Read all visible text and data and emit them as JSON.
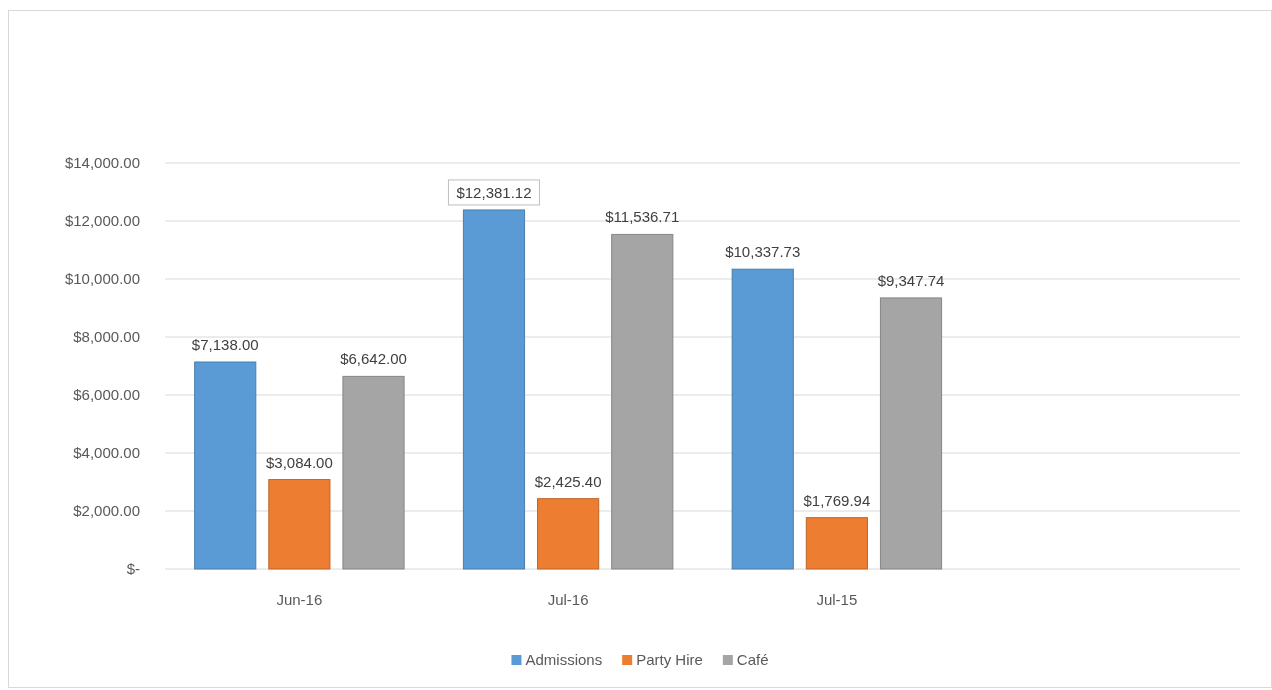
{
  "chart_data": {
    "type": "bar",
    "categories": [
      "Jun-16",
      "Jul-16",
      "Jul-15",
      null
    ],
    "series": [
      {
        "name": "Admissions",
        "color": "#5b9bd5",
        "values": [
          7138.0,
          12381.12,
          10337.73,
          null
        ],
        "value_labels": [
          "$7,138.00",
          "$12,381.12",
          "$10,337.73",
          null
        ]
      },
      {
        "name": "Party Hire",
        "color": "#ed7d31",
        "values": [
          3084.0,
          2425.4,
          1769.94,
          null
        ],
        "value_labels": [
          "$3,084.00",
          "$2,425.40",
          "$1,769.94",
          null
        ]
      },
      {
        "name": "Café",
        "color": "#a5a5a5",
        "values": [
          6642.0,
          11536.71,
          9347.74,
          null
        ],
        "value_labels": [
          "$6,642.00",
          "$11,536.71",
          "$9,347.74",
          null
        ]
      }
    ],
    "ylim": [
      0,
      14000
    ],
    "yticks": [
      {
        "value": 0,
        "label": "$-"
      },
      {
        "value": 2000,
        "label": "$2,000.00"
      },
      {
        "value": 4000,
        "label": "$4,000.00"
      },
      {
        "value": 6000,
        "label": "$6,000.00"
      },
      {
        "value": 8000,
        "label": "$8,000.00"
      },
      {
        "value": 10000,
        "label": "$10,000.00"
      },
      {
        "value": 12000,
        "label": "$12,000.00"
      },
      {
        "value": 14000,
        "label": "$14,000.00"
      }
    ],
    "grid": "y",
    "legend": "bottom"
  }
}
